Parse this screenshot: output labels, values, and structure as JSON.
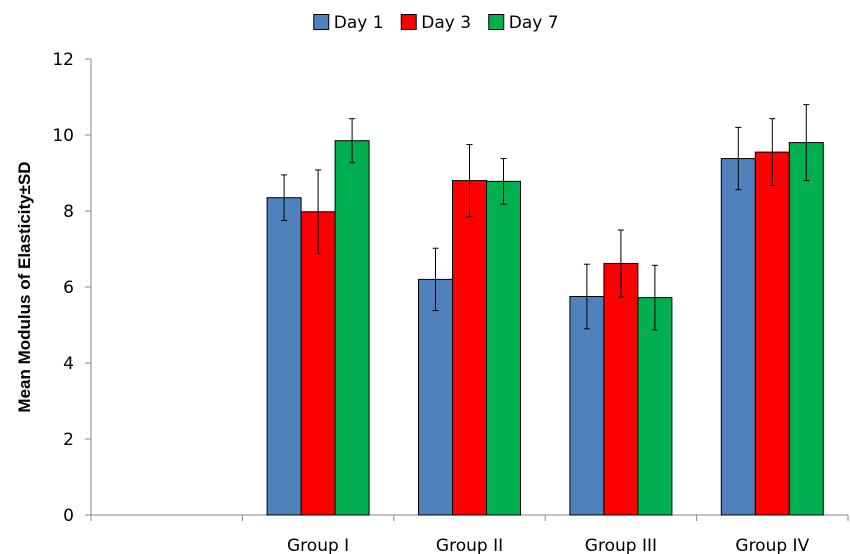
{
  "chart_data": {
    "type": "bar",
    "title": "",
    "xlabel": "",
    "ylabel": "Mean Modulus of Elasticity±SD",
    "ylim": [
      0,
      12
    ],
    "yticks": [
      0,
      2,
      4,
      6,
      8,
      10,
      12
    ],
    "grid": false,
    "legend_position": "top-center",
    "categories": [
      "",
      "Group I",
      "Group II",
      "Group III",
      "Group IV"
    ],
    "series": [
      {
        "name": "Day 1",
        "color": "#4F81BD",
        "values": [
          null,
          8.35,
          6.2,
          5.75,
          9.38
        ],
        "errors": [
          null,
          0.6,
          0.82,
          0.85,
          0.82
        ]
      },
      {
        "name": "Day 3",
        "color": "#FF0000",
        "values": [
          null,
          7.98,
          8.8,
          6.62,
          9.55
        ],
        "errors": [
          null,
          1.1,
          0.95,
          0.88,
          0.88
        ]
      },
      {
        "name": "Day 7",
        "color": "#00B050",
        "values": [
          null,
          9.85,
          8.78,
          5.72,
          9.8
        ],
        "errors": [
          null,
          0.58,
          0.6,
          0.85,
          1.0
        ]
      }
    ]
  }
}
